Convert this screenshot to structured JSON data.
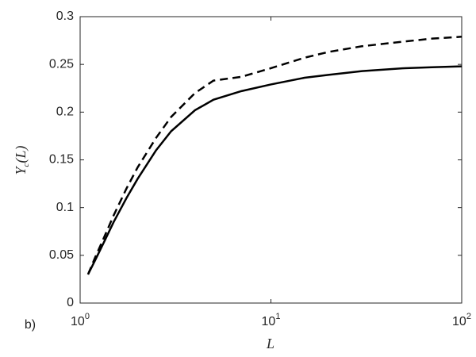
{
  "chart_data": {
    "type": "line",
    "panel_label": "b)",
    "xlabel": "L",
    "ylabel": "Y_c(L)",
    "x": [
      1.1,
      1.2,
      1.35,
      1.5,
      1.75,
      2,
      2.5,
      3,
      4,
      5,
      7,
      10,
      15,
      20,
      30,
      50,
      70,
      100
    ],
    "series": [
      {
        "color": "#000000",
        "dash": "solid",
        "values": [
          0.03,
          0.045,
          0.066,
          0.085,
          0.11,
          0.13,
          0.16,
          0.18,
          0.202,
          0.213,
          0.222,
          0.229,
          0.236,
          0.239,
          0.243,
          0.246,
          0.247,
          0.248
        ]
      },
      {
        "color": "#000000",
        "dash": "dashed",
        "values": [
          0.03,
          0.048,
          0.071,
          0.092,
          0.12,
          0.142,
          0.173,
          0.195,
          0.22,
          0.233,
          0.237,
          0.246,
          0.257,
          0.263,
          0.269,
          0.274,
          0.277,
          0.279
        ]
      }
    ],
    "xscale": "log",
    "xlim": [
      1,
      100
    ],
    "xticks": [
      {
        "value": 1,
        "label": "10^0"
      },
      {
        "value": 10,
        "label": "10^1"
      },
      {
        "value": 100,
        "label": "10^2"
      }
    ],
    "ylim": [
      0,
      0.3
    ],
    "yticks": [
      0,
      0.05,
      0.1,
      0.15,
      0.2,
      0.25,
      0.3
    ],
    "grid": false
  }
}
